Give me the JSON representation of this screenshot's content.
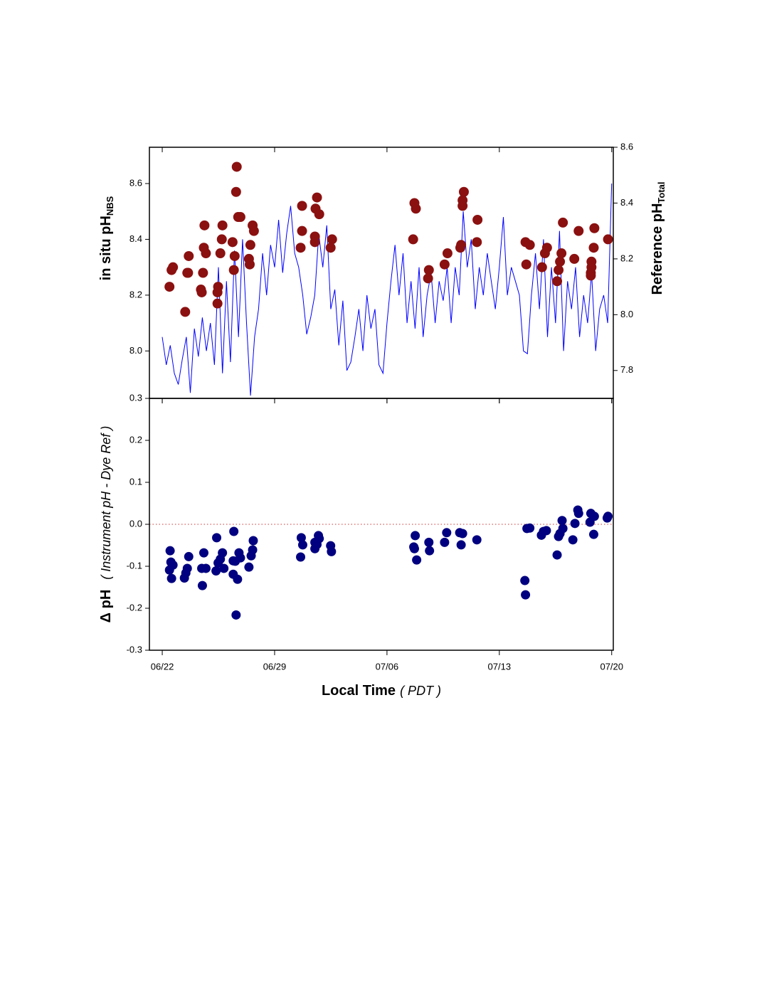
{
  "chart_data": [
    {
      "type": "line",
      "ylabel": "in situ pH",
      "ylabel_sub": "NBS",
      "y2label": "Reference pH",
      "y2label_sub": "Total",
      "xlim": [
        -0.8,
        28.1
      ],
      "ylim": [
        7.83,
        8.73
      ],
      "yticks": [
        {
          "value": 8,
          "label": "8.0"
        },
        8.2,
        8.4,
        8.6
      ],
      "y2lim": [
        7.7,
        8.6
      ],
      "y2ticks": [
        7.8,
        {
          "value": 8,
          "label": "8.0"
        },
        8.2,
        8.4,
        8.6
      ],
      "series": [
        {
          "color": "#0000ff",
          "x": [
            0,
            0.25,
            0.5,
            0.75,
            1,
            1.25,
            1.5,
            1.75,
            2,
            2.25,
            2.5,
            2.75,
            3,
            3.25,
            3.5,
            3.75,
            4,
            4.25,
            4.5,
            4.75,
            5,
            5.25,
            5.5,
            5.75,
            6,
            6.25,
            6.5,
            6.75,
            7,
            7.25,
            7.5,
            7.75,
            8,
            8.25,
            8.5,
            8.75,
            9,
            9.25,
            9.5,
            9.75,
            10,
            10.25,
            10.5,
            10.75,
            11,
            11.25,
            11.5,
            11.75,
            12,
            12.25,
            12.5,
            12.75,
            13,
            13.25,
            13.5,
            13.75,
            14,
            14.25,
            14.5,
            14.75,
            15,
            15.25,
            15.5,
            15.75,
            16,
            16.25,
            16.5,
            16.75,
            17,
            17.25,
            17.5,
            17.75,
            18,
            18.25,
            18.5,
            18.75,
            19,
            19.25,
            19.5,
            19.75,
            20,
            20.25,
            20.5,
            20.75,
            21,
            21.25,
            21.5,
            21.75,
            22,
            22.25,
            22.5,
            22.75,
            23,
            23.25,
            23.5,
            23.75,
            24,
            24.25,
            24.5,
            24.75,
            25,
            25.25,
            25.5,
            25.75,
            26,
            26.25,
            26.5,
            26.75,
            27,
            27.25,
            27.5,
            27.75,
            28
          ],
          "values": [
            8.05,
            7.95,
            8.02,
            7.92,
            7.88,
            7.97,
            8.05,
            7.85,
            8.08,
            7.98,
            8.12,
            8.0,
            8.1,
            7.95,
            8.3,
            7.92,
            8.25,
            7.96,
            8.36,
            8.05,
            8.4,
            8.1,
            7.84,
            8.05,
            8.15,
            8.35,
            8.2,
            8.38,
            8.3,
            8.47,
            8.28,
            8.42,
            8.52,
            8.35,
            8.3,
            8.2,
            8.06,
            8.12,
            8.2,
            8.42,
            8.3,
            8.45,
            8.15,
            8.22,
            8.02,
            8.18,
            7.93,
            7.96,
            8.05,
            8.15,
            8.0,
            8.2,
            8.08,
            8.15,
            7.95,
            7.92,
            8.1,
            8.25,
            8.38,
            8.2,
            8.35,
            8.1,
            8.25,
            8.08,
            8.3,
            8.05,
            8.2,
            8.28,
            8.1,
            8.25,
            8.18,
            8.3,
            8.1,
            8.3,
            8.2,
            8.5,
            8.3,
            8.4,
            8.15,
            8.3,
            8.2,
            8.35,
            8.25,
            8.15,
            8.3,
            8.48,
            8.2,
            8.3,
            8.25,
            8.2,
            8.0,
            7.99,
            8.2,
            8.35,
            8.15,
            8.4,
            8.05,
            8.3,
            8.1,
            8.43,
            8.0,
            8.25,
            8.15,
            8.3,
            8.05,
            8.2,
            8.1,
            8.28,
            8.0,
            8.15,
            8.2,
            8.1,
            8.6
          ]
        },
        {
          "type": "scatter",
          "axis": "y2",
          "color": "#8b1010",
          "x": [
            0.45,
            0.58,
            0.67,
            1.43,
            1.61,
            1.65,
            1.56,
            2.54,
            2.41,
            2.46,
            2.63,
            2.59,
            2.72,
            3.44,
            3.48,
            3.44,
            3.75,
            3.71,
            3.62,
            4.38,
            4.46,
            4.51,
            4.64,
            4.6,
            4.73,
            4.87,
            5.4,
            5.49,
            5.45,
            5.63,
            5.71,
            8.71,
            8.62,
            8.71,
            9.51,
            9.51,
            9.64,
            9.55,
            9.78,
            10.58,
            10.49,
            15.71,
            15.8,
            15.63,
            16.61,
            16.56,
            17.59,
            17.77,
            18.57,
            18.62,
            18.71,
            18.79,
            18.71,
            19.64,
            19.6,
            22.63,
            22.9,
            22.68,
            23.66,
            23.84,
            23.97,
            24.6,
            24.69,
            24.78,
            24.87,
            24.96,
            25.67,
            25.94,
            26.7,
            26.7,
            26.74,
            26.74,
            26.92,
            26.88,
            27.77
          ],
          "values": [
            8.1,
            8.16,
            8.17,
            8.01,
            8.15,
            8.21,
            8.15,
            8.15,
            8.09,
            8.08,
            8.32,
            8.24,
            8.22,
            8.08,
            8.1,
            8.04,
            8.32,
            8.27,
            8.22,
            8.26,
            8.16,
            8.21,
            8.53,
            8.44,
            8.35,
            8.35,
            8.2,
            8.25,
            8.18,
            8.32,
            8.3,
            8.39,
            8.24,
            8.3,
            8.28,
            8.26,
            8.42,
            8.38,
            8.36,
            8.27,
            8.24,
            8.4,
            8.38,
            8.27,
            8.16,
            8.13,
            8.18,
            8.22,
            8.24,
            8.25,
            8.39,
            8.44,
            8.41,
            8.34,
            8.26,
            8.26,
            8.25,
            8.18,
            8.17,
            8.22,
            8.24,
            8.12,
            8.16,
            8.19,
            8.22,
            8.33,
            8.2,
            8.3,
            8.15,
            8.14,
            8.19,
            8.17,
            8.31,
            8.24,
            8.27
          ]
        }
      ]
    },
    {
      "type": "scatter",
      "ylabel": "Δ pH",
      "ylabel_note": "( Instrument pH - Dye Ref )",
      "xlabel": "Local Time",
      "xlabel_unit": "( PDT )",
      "xlim": [
        -0.8,
        28.1
      ],
      "xticks": [
        {
          "value": 0,
          "label": "06/22"
        },
        {
          "value": 7,
          "label": "06/29"
        },
        {
          "value": 14,
          "label": "07/06"
        },
        {
          "value": 21,
          "label": "07/13"
        },
        {
          "value": 28,
          "label": "07/20"
        }
      ],
      "ylim": [
        -0.3,
        0.3
      ],
      "yticks": [
        -0.3,
        -0.2,
        -0.1,
        {
          "value": 0,
          "label": "0.0"
        },
        0.1,
        0.2,
        0.3
      ],
      "reference_line": {
        "value": 0,
        "color": "#cc3333"
      },
      "series": [
        {
          "color": "#000080",
          "x": [
            0.49,
            0.45,
            0.54,
            0.58,
            0.67,
            1.38,
            1.47,
            1.56,
            1.65,
            2.46,
            2.59,
            2.5,
            2.72,
            3.39,
            3.35,
            3.48,
            3.62,
            3.75,
            3.84,
            4.46,
            4.42,
            4.42,
            4.55,
            4.69,
            4.78,
            4.87,
            4.6,
            5.4,
            5.54,
            5.63,
            5.67,
            8.62,
            8.66,
            8.75,
            9.51,
            9.51,
            9.64,
            9.73,
            9.78,
            10.49,
            10.54,
            15.71,
            15.76,
            15.85,
            15.67,
            16.61,
            16.65,
            17.59,
            17.72,
            18.53,
            18.71,
            18.62,
            19.6,
            22.59,
            22.63,
            22.72,
            22.9,
            23.62,
            23.75,
            23.93,
            24.6,
            24.69,
            24.78,
            24.91,
            24.96,
            25.58,
            25.71,
            25.89,
            25.94,
            26.65,
            26.7,
            26.88,
            26.92,
            27.77,
            27.72
          ],
          "values": [
            -0.063,
            -0.109,
            -0.09,
            -0.129,
            -0.097,
            -0.128,
            -0.116,
            -0.105,
            -0.077,
            -0.105,
            -0.068,
            -0.146,
            -0.105,
            -0.032,
            -0.111,
            -0.092,
            -0.083,
            -0.068,
            -0.105,
            -0.017,
            -0.087,
            -0.119,
            -0.088,
            -0.131,
            -0.068,
            -0.08,
            -0.216,
            -0.102,
            -0.075,
            -0.061,
            -0.039,
            -0.078,
            -0.032,
            -0.049,
            -0.058,
            -0.043,
            -0.048,
            -0.027,
            -0.034,
            -0.051,
            -0.065,
            -0.058,
            -0.027,
            -0.085,
            -0.054,
            -0.043,
            -0.063,
            -0.043,
            -0.02,
            -0.02,
            -0.022,
            -0.049,
            -0.037,
            -0.134,
            -0.168,
            -0.01,
            -0.009,
            -0.026,
            -0.017,
            -0.015,
            -0.073,
            -0.029,
            -0.022,
            0.009,
            -0.01,
            -0.037,
            0.002,
            0.034,
            0.026,
            0.005,
            0.026,
            -0.024,
            0.019,
            0.019,
            0.015
          ]
        }
      ]
    }
  ]
}
